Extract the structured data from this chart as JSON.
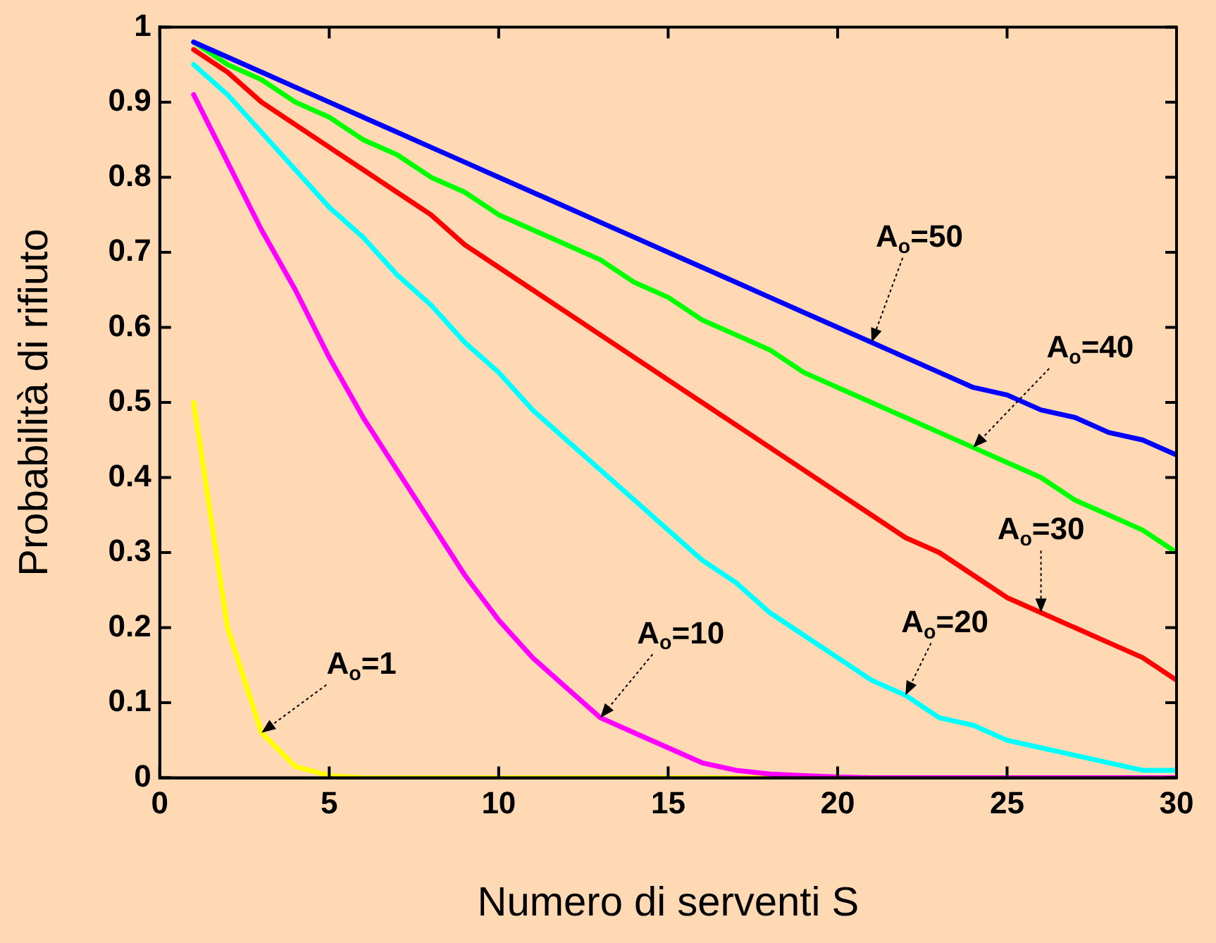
{
  "chart_data": {
    "type": "line",
    "xlabel": "Numero di serventi S",
    "ylabel": "Probabilità di rifiuto",
    "x": [
      1,
      2,
      3,
      4,
      5,
      6,
      7,
      8,
      9,
      10,
      11,
      12,
      13,
      14,
      15,
      16,
      17,
      18,
      19,
      20,
      21,
      22,
      23,
      24,
      25,
      26,
      27,
      28,
      29,
      30
    ],
    "series": [
      {
        "color": "#ffff00",
        "values": [
          0.5,
          0.2,
          0.06,
          0.015,
          0.003,
          0,
          0,
          0,
          0,
          0,
          0,
          0,
          0,
          0,
          0,
          0,
          0,
          0,
          0,
          null,
          null,
          null,
          null,
          null,
          null,
          null,
          null,
          null,
          null,
          null
        ]
      },
      {
        "color": "#ff00ff",
        "values": [
          0.91,
          0.82,
          0.73,
          0.65,
          0.56,
          0.48,
          0.41,
          0.34,
          0.27,
          0.21,
          0.16,
          0.12,
          0.08,
          0.06,
          0.04,
          0.02,
          0.01,
          0.005,
          0.003,
          0.001,
          0,
          0,
          0,
          0,
          0,
          0,
          0,
          0,
          0,
          0
        ]
      },
      {
        "color": "#00ffff",
        "values": [
          0.95,
          0.91,
          0.86,
          0.81,
          0.76,
          0.72,
          0.67,
          0.63,
          0.58,
          0.54,
          0.49,
          0.45,
          0.41,
          0.37,
          0.33,
          0.29,
          0.26,
          0.22,
          0.19,
          0.16,
          0.13,
          0.11,
          0.08,
          0.07,
          0.05,
          0.04,
          0.03,
          0.02,
          0.01,
          0.01
        ]
      },
      {
        "color": "#ff0000",
        "values": [
          0.97,
          0.94,
          0.9,
          0.87,
          0.84,
          0.81,
          0.78,
          0.75,
          0.71,
          0.68,
          0.65,
          0.62,
          0.59,
          0.56,
          0.53,
          0.5,
          0.47,
          0.44,
          0.41,
          0.38,
          0.35,
          0.32,
          0.3,
          0.27,
          0.24,
          0.22,
          0.2,
          0.18,
          0.16,
          0.13
        ]
      },
      {
        "color": "#00ff00",
        "values": [
          0.98,
          0.95,
          0.93,
          0.9,
          0.88,
          0.85,
          0.83,
          0.8,
          0.78,
          0.75,
          0.73,
          0.71,
          0.69,
          0.66,
          0.64,
          0.61,
          0.59,
          0.57,
          0.54,
          0.52,
          0.5,
          0.48,
          0.46,
          0.44,
          0.42,
          0.4,
          0.37,
          0.35,
          0.33,
          0.3
        ]
      },
      {
        "color": "#0000ff",
        "values": [
          0.98,
          0.96,
          0.94,
          0.92,
          0.9,
          0.88,
          0.86,
          0.84,
          0.82,
          0.8,
          0.78,
          0.76,
          0.74,
          0.72,
          0.7,
          0.68,
          0.66,
          0.64,
          0.62,
          0.6,
          0.58,
          0.56,
          0.54,
          0.52,
          0.51,
          0.49,
          0.48,
          0.46,
          0.45,
          0.43
        ]
      }
    ],
    "xlim": [
      0,
      30
    ],
    "xticks": [
      0,
      5,
      10,
      15,
      20,
      25,
      30
    ],
    "ylim": [
      0,
      1
    ],
    "yticks": [
      0,
      0.1,
      0.2,
      0.3,
      0.4,
      0.5,
      0.6,
      0.7,
      0.8,
      0.9,
      1
    ],
    "grid": false,
    "legend": false,
    "marker": "none",
    "line_style": "solid",
    "annotations": [
      {
        "text": "A$_{o}$=1",
        "x": 3,
        "y": 0.06
      },
      {
        "text": "A$_{o}$=10",
        "x": 13,
        "y": 0.08
      },
      {
        "text": "A$_{o}$=20",
        "x": 22,
        "y": 0.11
      },
      {
        "text": "A$_{o}$=30",
        "x": 26,
        "y": 0.22
      },
      {
        "text": "A$_{o}$=40",
        "x": 24,
        "y": 0.44
      },
      {
        "text": "A$_{o}$=50",
        "x": 21,
        "y": 0.58
      }
    ]
  }
}
